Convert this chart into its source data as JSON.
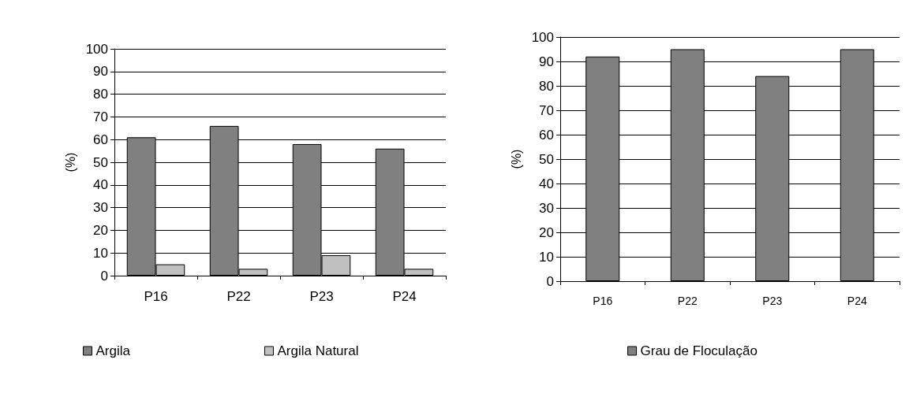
{
  "chart_data": [
    {
      "type": "bar",
      "ylabel": "(%)",
      "categories": [
        "P16",
        "P22",
        "P23",
        "P24"
      ],
      "series": [
        {
          "name": "Argila",
          "color": "#808080",
          "values": [
            61,
            66,
            58,
            56
          ]
        },
        {
          "name": "Argila Natural",
          "color": "#c0c0c0",
          "values": [
            5,
            3,
            9,
            3
          ]
        }
      ],
      "ylim": [
        0,
        100
      ],
      "yticks": [
        0,
        10,
        20,
        30,
        40,
        50,
        60,
        70,
        80,
        90,
        100
      ],
      "grid": "y",
      "legend": "bottom"
    },
    {
      "type": "bar",
      "ylabel": "(%)",
      "categories": [
        "P16",
        "P22",
        "P23",
        "P24"
      ],
      "series": [
        {
          "name": "Grau de Floculação",
          "color": "#808080",
          "values": [
            92,
            95,
            84,
            95
          ]
        }
      ],
      "ylim": [
        0,
        100
      ],
      "yticks": [
        0,
        10,
        20,
        30,
        40,
        50,
        60,
        70,
        80,
        90,
        100
      ],
      "grid": "y",
      "legend": "bottom"
    }
  ]
}
